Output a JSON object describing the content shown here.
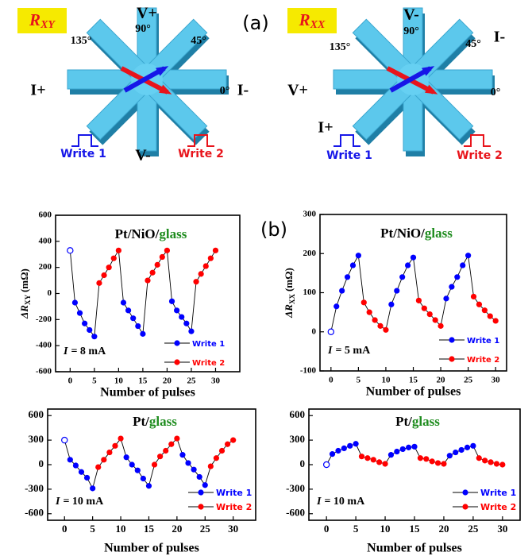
{
  "figure_labels": {
    "a": "(a)",
    "b": "(b)"
  },
  "diagrams": [
    {
      "symbol": {
        "main": "R",
        "sub": "XY"
      },
      "labels": [
        "V+",
        "90°",
        "135°",
        "45°",
        "I+",
        "0°",
        "I-",
        "V-"
      ],
      "write1": "Write 1",
      "write2": "Write 2"
    },
    {
      "symbol": {
        "main": "R",
        "sub": "XX"
      },
      "labels": [
        "V-",
        "90°",
        "135°",
        "45°",
        "I-",
        "V+",
        "0°",
        "I+"
      ],
      "write1": "Write 1",
      "write2": "Write 2"
    }
  ],
  "chart_data": [
    {
      "type": "line",
      "title": [
        {
          "text": "Pt/NiO/",
          "color": "#000000"
        },
        {
          "text": "glass",
          "color": "#1e8c1e"
        }
      ],
      "xlabel": "Number of pulses",
      "ylabel": {
        "main": "ΔR",
        "sub": "XY",
        "unit": "(mΩ)"
      },
      "annotation": {
        "symbol": "I",
        "text": "= 8 mA"
      },
      "x": [
        0,
        1,
        2,
        3,
        4,
        5,
        6,
        7,
        8,
        9,
        10,
        11,
        12,
        13,
        14,
        15,
        16,
        17,
        18,
        19,
        20,
        21,
        22,
        23,
        24,
        25,
        26,
        27,
        28,
        29,
        30
      ],
      "series": [
        {
          "name": "Write 1",
          "color": "#0000ff",
          "values": [
            330,
            -70,
            -150,
            -230,
            -280,
            -330,
            null,
            null,
            null,
            null,
            null,
            -70,
            -130,
            -190,
            -250,
            -310,
            null,
            null,
            null,
            null,
            null,
            -60,
            -130,
            -180,
            -230,
            -290,
            null,
            null,
            null,
            null,
            null
          ]
        },
        {
          "name": "Write 2",
          "color": "#ff0000",
          "values": [
            null,
            null,
            null,
            null,
            null,
            null,
            80,
            140,
            200,
            270,
            330,
            null,
            null,
            null,
            null,
            null,
            100,
            160,
            220,
            280,
            330,
            null,
            null,
            null,
            null,
            null,
            90,
            150,
            210,
            270,
            330
          ]
        }
      ],
      "xlim": [
        -3,
        35
      ],
      "ylim": [
        -600,
        600
      ],
      "xticks": [
        0,
        5,
        10,
        15,
        20,
        25,
        30
      ],
      "yticks": [
        -600,
        -400,
        -200,
        0,
        200,
        400,
        600
      ]
    },
    {
      "type": "line",
      "title": [
        {
          "text": "Pt/NiO/",
          "color": "#000000"
        },
        {
          "text": "glass",
          "color": "#1e8c1e"
        }
      ],
      "xlabel": "Number of pulses",
      "ylabel": {
        "main": "ΔR",
        "sub": "XX",
        "unit": "(mΩ)"
      },
      "annotation": {
        "symbol": "I",
        "text": "= 5 mA"
      },
      "x": [
        0,
        1,
        2,
        3,
        4,
        5,
        6,
        7,
        8,
        9,
        10,
        11,
        12,
        13,
        14,
        15,
        16,
        17,
        18,
        19,
        20,
        21,
        22,
        23,
        24,
        25,
        26,
        27,
        28,
        29,
        30
      ],
      "series": [
        {
          "name": "Write 1",
          "color": "#0000ff",
          "values": [
            0,
            65,
            105,
            140,
            170,
            195,
            null,
            null,
            null,
            null,
            null,
            70,
            105,
            140,
            170,
            190,
            null,
            null,
            null,
            null,
            null,
            85,
            115,
            140,
            170,
            195,
            null,
            null,
            null,
            null,
            null
          ]
        },
        {
          "name": "Write 2",
          "color": "#ff0000",
          "values": [
            null,
            null,
            null,
            null,
            null,
            null,
            75,
            50,
            30,
            15,
            5,
            null,
            null,
            null,
            null,
            null,
            80,
            60,
            45,
            30,
            15,
            null,
            null,
            null,
            null,
            null,
            90,
            70,
            55,
            40,
            28
          ]
        }
      ],
      "xlim": [
        -2,
        32
      ],
      "ylim": [
        -100,
        300
      ],
      "xticks": [
        0,
        5,
        10,
        15,
        20,
        25,
        30
      ],
      "yticks": [
        -100,
        0,
        100,
        200,
        300
      ]
    },
    {
      "type": "line",
      "title": [
        {
          "text": "Pt/",
          "color": "#000000"
        },
        {
          "text": "glass",
          "color": "#1e8c1e"
        }
      ],
      "xlabel": "Number of pulses",
      "annotation": {
        "symbol": "I",
        "text": "= 10 mA"
      },
      "x": [
        0,
        1,
        2,
        3,
        4,
        5,
        6,
        7,
        8,
        9,
        10,
        11,
        12,
        13,
        14,
        15,
        16,
        17,
        18,
        19,
        20,
        21,
        22,
        23,
        24,
        25,
        26,
        27,
        28,
        29,
        30
      ],
      "series": [
        {
          "name": "Write 1",
          "color": "#0000ff",
          "values": [
            300,
            60,
            -10,
            -90,
            -160,
            -290,
            null,
            null,
            null,
            null,
            null,
            90,
            0,
            -70,
            -170,
            -260,
            null,
            null,
            null,
            null,
            null,
            120,
            20,
            -60,
            -150,
            -250,
            null,
            null,
            null,
            null,
            null
          ]
        },
        {
          "name": "Write 2",
          "color": "#ff0000",
          "values": [
            null,
            null,
            null,
            null,
            null,
            null,
            -30,
            60,
            150,
            230,
            320,
            null,
            null,
            null,
            null,
            null,
            0,
            100,
            170,
            250,
            320,
            null,
            null,
            null,
            null,
            null,
            -20,
            80,
            170,
            250,
            300
          ]
        }
      ],
      "xlim": [
        -3,
        34
      ],
      "ylim": [
        -680,
        680
      ],
      "xticks": [
        0,
        5,
        10,
        15,
        20,
        25,
        30
      ],
      "yticks": [
        -600,
        -300,
        0,
        300,
        600
      ]
    },
    {
      "type": "line",
      "title": [
        {
          "text": "Pt/",
          "color": "#000000"
        },
        {
          "text": "glass",
          "color": "#1e8c1e"
        }
      ],
      "xlabel": "Number of pulses",
      "annotation": {
        "symbol": "I",
        "text": "= 10 mA"
      },
      "x": [
        0,
        1,
        2,
        3,
        4,
        5,
        6,
        7,
        8,
        9,
        10,
        11,
        12,
        13,
        14,
        15,
        16,
        17,
        18,
        19,
        20,
        21,
        22,
        23,
        24,
        25,
        26,
        27,
        28,
        29,
        30
      ],
      "series": [
        {
          "name": "Write 1",
          "color": "#0000ff",
          "values": [
            0,
            130,
            170,
            200,
            230,
            255,
            null,
            null,
            null,
            null,
            null,
            120,
            160,
            190,
            210,
            220,
            null,
            null,
            null,
            null,
            null,
            110,
            150,
            180,
            210,
            230,
            null,
            null,
            null,
            null,
            null
          ]
        },
        {
          "name": "Write 2",
          "color": "#ff0000",
          "values": [
            null,
            null,
            null,
            null,
            null,
            null,
            100,
            80,
            60,
            30,
            10,
            null,
            null,
            null,
            null,
            null,
            80,
            70,
            40,
            20,
            10,
            null,
            null,
            null,
            null,
            null,
            80,
            50,
            30,
            10,
            0
          ]
        }
      ],
      "xlim": [
        -3,
        33
      ],
      "ylim": [
        -680,
        680
      ],
      "xticks": [
        0,
        5,
        10,
        15,
        20,
        25,
        30
      ],
      "yticks": [
        -600,
        -300,
        0,
        300,
        600
      ]
    }
  ]
}
